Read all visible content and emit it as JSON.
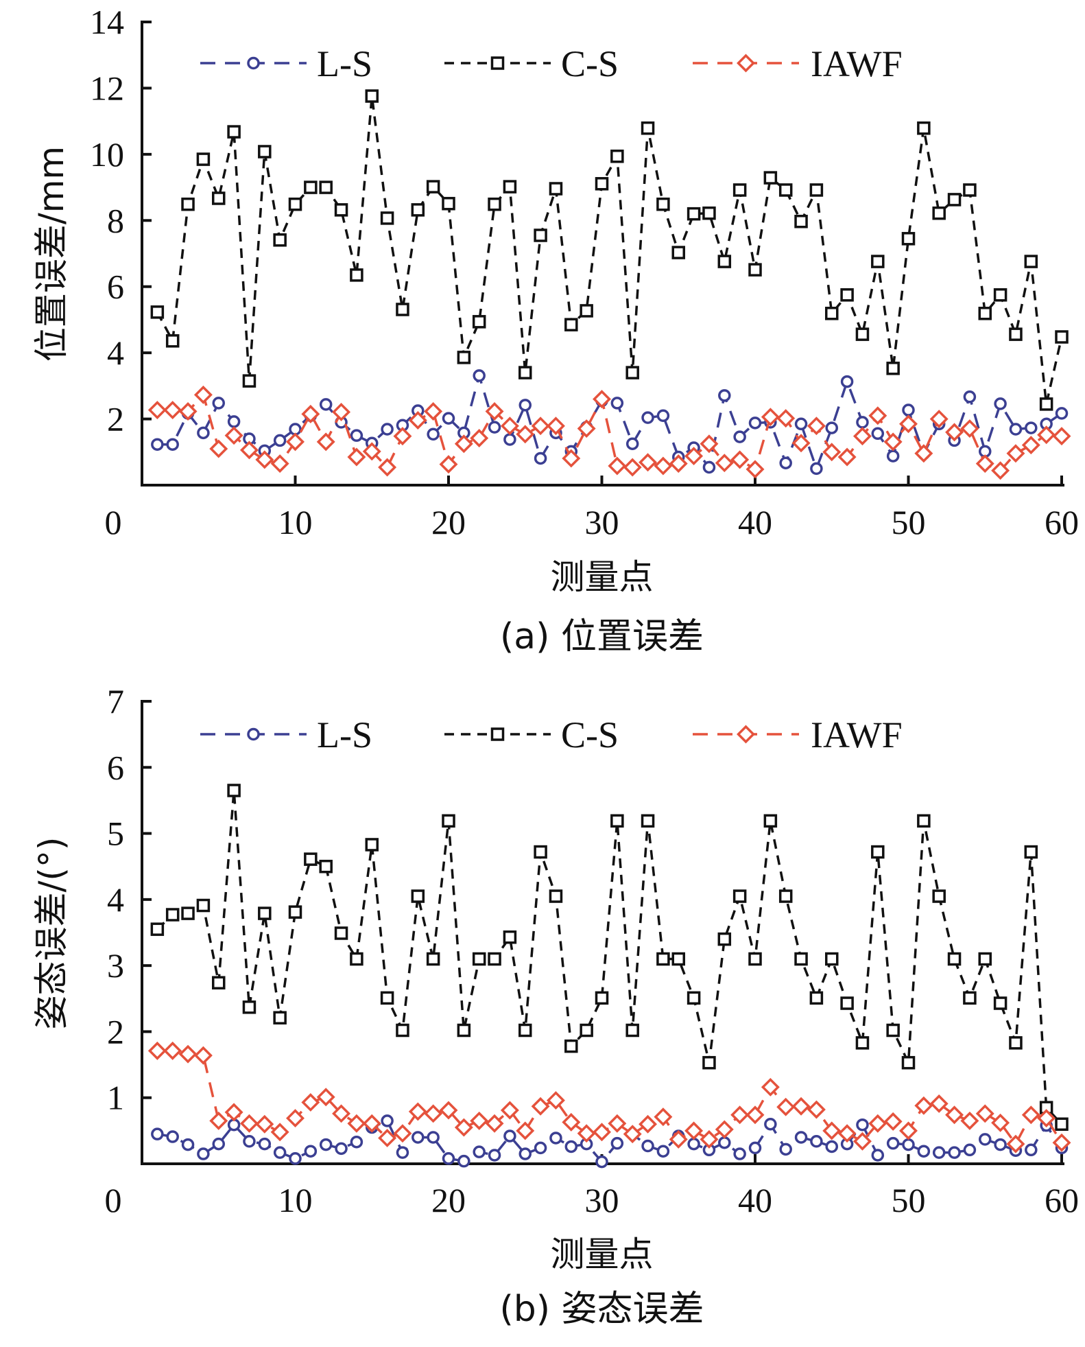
{
  "chart_data": [
    {
      "type": "line",
      "title": "",
      "caption": "(a)  位置误差",
      "xlabel": "测量点",
      "ylabel": "位置误差/mm",
      "xlim": [
        0,
        60
      ],
      "ylim": [
        0,
        14
      ],
      "xticks": [
        0,
        10,
        20,
        30,
        40,
        50,
        60
      ],
      "yticks": [
        2,
        4,
        6,
        8,
        10,
        12,
        14
      ],
      "ytick_labels_shown": [
        "2",
        "4",
        "6",
        "8",
        "10",
        "12",
        "14"
      ],
      "grid": false,
      "legend_position": "top",
      "x": [
        1,
        2,
        3,
        4,
        5,
        6,
        7,
        8,
        9,
        10,
        11,
        12,
        13,
        14,
        15,
        16,
        17,
        18,
        19,
        20,
        21,
        22,
        23,
        24,
        25,
        26,
        27,
        28,
        29,
        30,
        31,
        32,
        33,
        34,
        35,
        36,
        37,
        38,
        39,
        40,
        41,
        42,
        43,
        44,
        45,
        46,
        47,
        48,
        49,
        50,
        51,
        52,
        53,
        54,
        55,
        56,
        57,
        58,
        59,
        60
      ],
      "series": [
        {
          "name": "L-S",
          "color": "#3b3f92",
          "marker": "circle",
          "values": [
            1.23,
            1.23,
            2.17,
            1.58,
            2.48,
            1.92,
            1.4,
            1.04,
            1.35,
            1.69,
            2.1,
            2.44,
            1.9,
            1.5,
            1.27,
            1.69,
            1.81,
            2.25,
            1.54,
            2.02,
            1.58,
            3.31,
            1.75,
            1.38,
            2.42,
            0.81,
            1.58,
            1.02,
            1.75,
            2.55,
            2.48,
            1.25,
            2.04,
            2.1,
            0.85,
            1.13,
            0.54,
            2.71,
            1.46,
            1.88,
            1.9,
            0.67,
            1.85,
            0.5,
            1.73,
            3.13,
            1.9,
            1.56,
            0.88,
            2.27,
            0.95,
            1.85,
            1.35,
            2.67,
            1.02,
            2.46,
            1.69,
            1.73,
            1.85,
            2.17
          ]
        },
        {
          "name": "C-S",
          "color": "#111111",
          "marker": "square",
          "values": [
            5.23,
            4.36,
            8.49,
            9.85,
            8.67,
            10.68,
            3.15,
            10.08,
            7.41,
            8.49,
            9.0,
            9.0,
            8.32,
            6.35,
            11.76,
            8.07,
            5.31,
            8.32,
            9.02,
            8.51,
            3.86,
            4.94,
            8.49,
            9.02,
            3.4,
            7.55,
            8.96,
            4.85,
            5.27,
            9.11,
            9.94,
            3.4,
            10.79,
            8.49,
            7.03,
            8.2,
            8.22,
            6.76,
            8.92,
            6.51,
            9.29,
            8.92,
            7.97,
            8.92,
            5.19,
            5.75,
            4.56,
            6.76,
            3.53,
            7.45,
            10.79,
            8.22,
            8.63,
            8.92,
            5.19,
            5.75,
            4.56,
            6.76,
            2.45,
            4.48
          ]
        },
        {
          "name": "IAWF",
          "color": "#e5523c",
          "marker": "diamond",
          "values": [
            2.27,
            2.27,
            2.23,
            2.73,
            1.1,
            1.5,
            1.06,
            0.77,
            0.65,
            1.31,
            2.15,
            1.31,
            2.21,
            0.85,
            1.02,
            0.54,
            1.48,
            1.96,
            2.23,
            0.63,
            1.25,
            1.42,
            2.23,
            1.79,
            1.54,
            1.79,
            1.79,
            0.81,
            1.71,
            2.6,
            0.58,
            0.54,
            0.69,
            0.58,
            0.65,
            0.88,
            1.25,
            0.67,
            0.77,
            0.48,
            2.06,
            2.02,
            1.27,
            1.79,
            1.0,
            0.85,
            1.48,
            2.1,
            1.31,
            1.85,
            0.96,
            2.0,
            1.6,
            1.71,
            0.65,
            0.44,
            0.96,
            1.21,
            1.52,
            1.48
          ]
        }
      ]
    },
    {
      "type": "line",
      "title": "",
      "caption": "(b)  姿态误差",
      "xlabel": "测量点",
      "ylabel": "姿态误差/(°)",
      "xlim": [
        0,
        60
      ],
      "ylim": [
        0,
        7
      ],
      "xticks": [
        0,
        10,
        20,
        30,
        40,
        50,
        60
      ],
      "yticks": [
        1,
        2,
        3,
        4,
        5,
        6,
        7
      ],
      "ytick_labels_shown": [
        "1",
        "2",
        "3",
        "4",
        "5",
        "6",
        "7"
      ],
      "grid": false,
      "legend_position": "top",
      "x": [
        1,
        2,
        3,
        4,
        5,
        6,
        7,
        8,
        9,
        10,
        11,
        12,
        13,
        14,
        15,
        16,
        17,
        18,
        19,
        20,
        21,
        22,
        23,
        24,
        25,
        26,
        27,
        28,
        29,
        30,
        31,
        32,
        33,
        34,
        35,
        36,
        37,
        38,
        39,
        40,
        41,
        42,
        43,
        44,
        45,
        46,
        47,
        48,
        49,
        50,
        51,
        52,
        53,
        54,
        55,
        56,
        57,
        58,
        59,
        60
      ],
      "series": [
        {
          "name": "L-S",
          "color": "#3b3f92",
          "marker": "circle",
          "values": [
            0.45,
            0.41,
            0.29,
            0.15,
            0.3,
            0.59,
            0.34,
            0.3,
            0.17,
            0.08,
            0.19,
            0.29,
            0.23,
            0.33,
            0.55,
            0.65,
            0.17,
            0.4,
            0.4,
            0.08,
            0.04,
            0.18,
            0.13,
            0.42,
            0.15,
            0.24,
            0.39,
            0.26,
            0.3,
            0.03,
            0.31,
            0.45,
            0.27,
            0.19,
            0.42,
            0.3,
            0.21,
            0.32,
            0.15,
            0.24,
            0.6,
            0.22,
            0.4,
            0.34,
            0.26,
            0.3,
            0.59,
            0.13,
            0.31,
            0.29,
            0.19,
            0.17,
            0.17,
            0.21,
            0.37,
            0.29,
            0.2,
            0.21,
            0.58,
            0.24
          ]
        },
        {
          "name": "C-S",
          "color": "#111111",
          "marker": "square",
          "values": [
            3.55,
            3.77,
            3.79,
            3.91,
            2.74,
            5.65,
            2.37,
            3.79,
            2.21,
            3.81,
            4.61,
            4.5,
            3.49,
            3.1,
            4.83,
            2.51,
            2.02,
            4.05,
            3.1,
            5.19,
            2.02,
            3.1,
            3.1,
            3.43,
            2.02,
            4.72,
            4.05,
            1.78,
            2.02,
            2.51,
            5.19,
            2.02,
            5.19,
            3.1,
            3.1,
            2.51,
            1.53,
            3.4,
            4.05,
            3.1,
            5.19,
            4.05,
            3.1,
            2.51,
            3.1,
            2.43,
            1.83,
            4.72,
            2.02,
            1.53,
            5.19,
            4.05,
            3.1,
            2.51,
            3.1,
            2.43,
            1.83,
            4.72,
            0.85,
            0.6
          ]
        },
        {
          "name": "IAWF",
          "color": "#e5523c",
          "marker": "diamond",
          "values": [
            1.71,
            1.71,
            1.66,
            1.64,
            0.65,
            0.78,
            0.61,
            0.6,
            0.48,
            0.69,
            0.93,
            1.01,
            0.76,
            0.61,
            0.61,
            0.39,
            0.46,
            0.79,
            0.76,
            0.81,
            0.55,
            0.65,
            0.61,
            0.81,
            0.5,
            0.87,
            0.96,
            0.63,
            0.46,
            0.48,
            0.61,
            0.45,
            0.6,
            0.71,
            0.37,
            0.5,
            0.37,
            0.52,
            0.74,
            0.74,
            1.16,
            0.86,
            0.87,
            0.82,
            0.5,
            0.46,
            0.34,
            0.61,
            0.64,
            0.5,
            0.88,
            0.91,
            0.74,
            0.65,
            0.76,
            0.62,
            0.3,
            0.74,
            0.69,
            0.32
          ]
        }
      ]
    }
  ]
}
